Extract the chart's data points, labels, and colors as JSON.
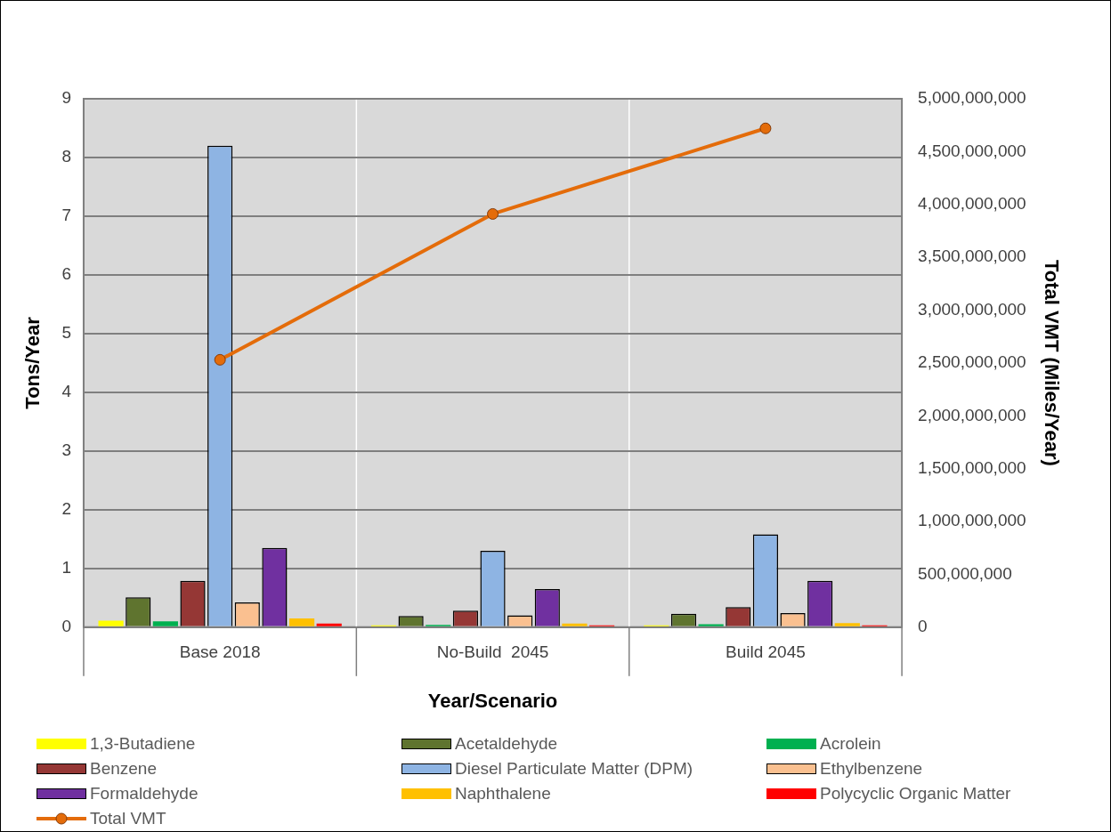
{
  "chart_data": {
    "type": "bar",
    "xlabel": "Year/Scenario",
    "ylabel": "Tons/Year",
    "y2label": "Total VMT (Miles/Year)",
    "categories": [
      "Base 2018",
      "No-Build  2045",
      "Build 2045"
    ],
    "series": [
      {
        "name": "1,3-Butadiene",
        "color": "#ffff00",
        "values": [
          0.11,
          0.03,
          0.03
        ]
      },
      {
        "name": "Acetaldehyde",
        "color": "#5f742f",
        "values": [
          0.51,
          0.19,
          0.23
        ]
      },
      {
        "name": "Acrolein",
        "color": "#00b050",
        "values": [
          0.1,
          0.04,
          0.05
        ]
      },
      {
        "name": "Benzene",
        "color": "#953735",
        "values": [
          0.79,
          0.28,
          0.34
        ]
      },
      {
        "name": "Diesel Particulate Matter (DPM)",
        "color": "#8eb4e3",
        "values": [
          8.2,
          1.3,
          1.58
        ]
      },
      {
        "name": "Ethylbenzene",
        "color": "#fac090",
        "values": [
          0.42,
          0.2,
          0.24
        ]
      },
      {
        "name": "Formaldehyde",
        "color": "#7030a0",
        "values": [
          1.35,
          0.65,
          0.79
        ]
      },
      {
        "name": "Naphthalene",
        "color": "#ffc000",
        "values": [
          0.15,
          0.06,
          0.07
        ]
      },
      {
        "name": "Polycyclic Organic Matter",
        "color": "#ff0000",
        "values": [
          0.06,
          0.03,
          0.03
        ]
      },
      {
        "name": "Total VMT",
        "type": "line",
        "axis": "y2",
        "color": "#e46c0a",
        "marker": "circle",
        "values": [
          2530000000,
          3910000000,
          4720000000
        ]
      }
    ],
    "ylim": [
      0,
      9
    ],
    "yticks": [
      0,
      1,
      2,
      3,
      4,
      5,
      6,
      7,
      8,
      9
    ],
    "y2lim": [
      0,
      5000000000
    ],
    "y2ticks": [
      0,
      {
        "value": 500000000,
        "label": "500,000,000"
      },
      {
        "value": 1000000000,
        "label": "1,000,000,000"
      },
      {
        "value": 1500000000,
        "label": "1,500,000,000"
      },
      {
        "value": 2000000000,
        "label": "2,000,000,000"
      },
      {
        "value": 2500000000,
        "label": "2,500,000,000"
      },
      {
        "value": 3000000000,
        "label": "3,000,000,000"
      },
      {
        "value": 3500000000,
        "label": "3,500,000,000"
      },
      {
        "value": 4000000000,
        "label": "4,000,000,000"
      },
      {
        "value": 4500000000,
        "label": "4,500,000,000"
      },
      {
        "value": 5000000000,
        "label": "5,000,000,000"
      }
    ],
    "grid": "y",
    "legend": "bottom"
  }
}
